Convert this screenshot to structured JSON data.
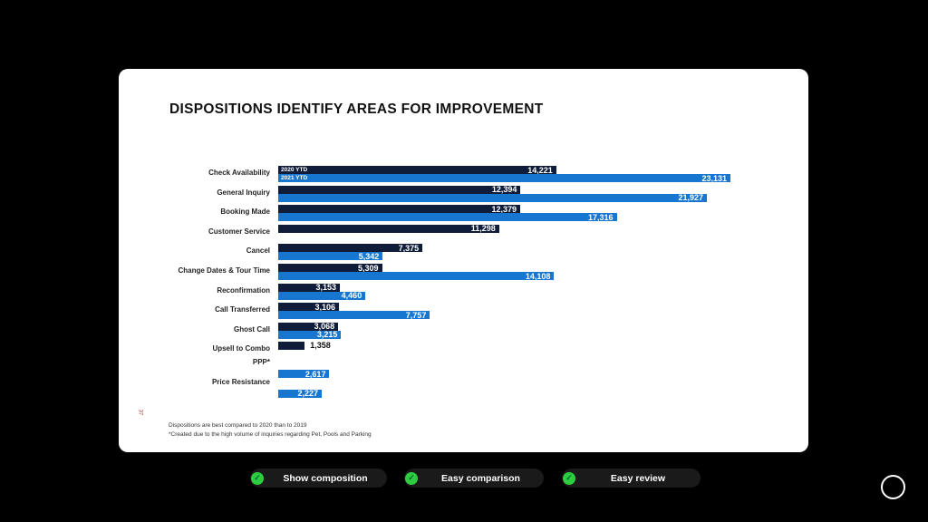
{
  "slide": {
    "title": "DISPOSITIONS IDENTIFY AREAS FOR IMPROVEMENT",
    "page_number": "37",
    "notes": [
      "Dispositions are best compared to 2020 than to 2019",
      "*Created due to the high volume of inquiries regarding Pet, Pools and Parking"
    ]
  },
  "chart_data": {
    "type": "bar",
    "orientation": "horizontal",
    "categories": [
      "Check Availability",
      "General Inquiry",
      "Booking Made",
      "Customer Service",
      "Cancel",
      "Change Dates & Tour Time",
      "Reconfirmation",
      "Call Transferred",
      "Ghost Call",
      "Upsell to Combo",
      "PPP*",
      "Price Resistance"
    ],
    "series": [
      {
        "name": "2020 YTD",
        "color": "#0f1d3a",
        "values": [
          14221,
          12394,
          12379,
          11298,
          7375,
          5309,
          3153,
          3106,
          3068,
          1358,
          null,
          null
        ]
      },
      {
        "name": "2021 YTD",
        "color": "#1777d0",
        "values": [
          23131,
          21927,
          17316,
          null,
          5342,
          14108,
          4460,
          7757,
          3215,
          null,
          2617,
          2227
        ]
      }
    ],
    "legend": "inside-first-bars",
    "grid": false
  },
  "pills": [
    {
      "label": "Show composition",
      "icon": "check-circle-icon"
    },
    {
      "label": "Easy comparison",
      "icon": "check-circle-icon"
    },
    {
      "label": "Easy review",
      "icon": "check-circle-icon"
    }
  ]
}
